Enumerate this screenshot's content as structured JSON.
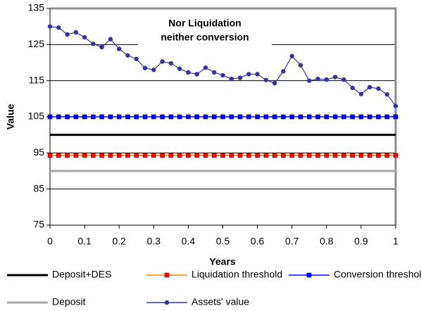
{
  "chart_data": {
    "type": "line",
    "annotation": [
      "Nor Liquidation",
      "neither conversion"
    ],
    "xlabel": "Years",
    "ylabel": "Value",
    "xlim": [
      0,
      1
    ],
    "xticks": [
      0,
      0.1,
      0.2,
      0.3,
      0.4,
      0.5,
      0.6,
      0.7,
      0.8,
      0.9,
      1
    ],
    "ylim": [
      75,
      135
    ],
    "yticks": [
      75,
      85,
      95,
      105,
      115,
      125,
      135
    ],
    "grid": true,
    "legend": "bottom",
    "x": [
      0,
      0.025,
      0.05,
      0.075,
      0.1,
      0.125,
      0.15,
      0.175,
      0.2,
      0.225,
      0.25,
      0.275,
      0.3,
      0.325,
      0.35,
      0.375,
      0.4,
      0.425,
      0.45,
      0.475,
      0.5,
      0.525,
      0.55,
      0.575,
      0.6,
      0.625,
      0.65,
      0.675,
      0.7,
      0.725,
      0.75,
      0.775,
      0.8,
      0.825,
      0.85,
      0.875,
      0.9,
      0.925,
      0.95,
      0.975,
      1
    ],
    "series": [
      {
        "name": "Deposit+DES",
        "color": "#000000",
        "marker": "none",
        "values": [
          100,
          100,
          100,
          100,
          100,
          100,
          100,
          100,
          100,
          100,
          100,
          100,
          100,
          100,
          100,
          100,
          100,
          100,
          100,
          100,
          100,
          100,
          100,
          100,
          100,
          100,
          100,
          100,
          100,
          100,
          100,
          100,
          100,
          100,
          100,
          100,
          100,
          100,
          100,
          100,
          100
        ]
      },
      {
        "name": "Liquidation threshold",
        "color": "#ff8000",
        "marker": "square",
        "marker_color": "#ff0000",
        "values": [
          94.3,
          94.3,
          94.3,
          94.3,
          94.3,
          94.3,
          94.3,
          94.3,
          94.3,
          94.3,
          94.3,
          94.3,
          94.3,
          94.3,
          94.3,
          94.3,
          94.3,
          94.3,
          94.3,
          94.3,
          94.3,
          94.3,
          94.3,
          94.3,
          94.3,
          94.3,
          94.3,
          94.3,
          94.3,
          94.3,
          94.3,
          94.3,
          94.3,
          94.3,
          94.3,
          94.3,
          94.3,
          94.3,
          94.3,
          94.3,
          94.3
        ]
      },
      {
        "name": "Conversion threshold",
        "color": "#0000ff",
        "marker": "square",
        "marker_color": "#0000ff",
        "values": [
          105,
          105,
          105,
          105,
          105,
          105,
          105,
          105,
          105,
          105,
          105,
          105,
          105,
          105,
          105,
          105,
          105,
          105,
          105,
          105,
          105,
          105,
          105,
          105,
          105,
          105,
          105,
          105,
          105,
          105,
          105,
          105,
          105,
          105,
          105,
          105,
          105,
          105,
          105,
          105,
          105
        ]
      },
      {
        "name": "Deposit",
        "color": "#a6a6a6",
        "marker": "none",
        "values": [
          90,
          90,
          90,
          90,
          90,
          90,
          90,
          90,
          90,
          90,
          90,
          90,
          90,
          90,
          90,
          90,
          90,
          90,
          90,
          90,
          90,
          90,
          90,
          90,
          90,
          90,
          90,
          90,
          90,
          90,
          90,
          90,
          90,
          90,
          90,
          90,
          90,
          90,
          90,
          90,
          90
        ]
      },
      {
        "name": "Assets' value",
        "color": "#333399",
        "marker": "circle",
        "marker_color": "#333399",
        "values": [
          130,
          129.7,
          127.8,
          128.4,
          127,
          125.2,
          124.3,
          126.5,
          123.8,
          122,
          121,
          118.5,
          118,
          120.3,
          119.8,
          118.3,
          117.3,
          116.8,
          118.6,
          117.3,
          116.5,
          115.5,
          115.8,
          116.8,
          116.8,
          115.2,
          114.3,
          117.6,
          121.8,
          119.3,
          115,
          115.5,
          115.3,
          116,
          115.3,
          113,
          111.3,
          113.2,
          112.8,
          111.2,
          108
        ]
      }
    ]
  }
}
